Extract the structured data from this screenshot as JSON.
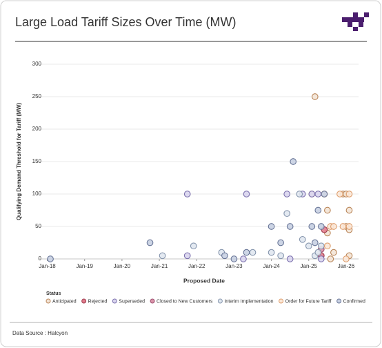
{
  "chart_data": {
    "type": "scatter",
    "title": "Large Load Tariff Sizes Over Time (MW)",
    "x_label": "Proposed Date",
    "y_label": "Qualifying Demand Threshold for Tariff (MW)",
    "legend_title": "Status",
    "source": "Data Source : Halcyon",
    "xlim": [
      "2017-10",
      "2026-05"
    ],
    "xticks": [
      {
        "value": "2018-01",
        "label": "Jan-18"
      },
      {
        "value": "2019-01",
        "label": "Jan-19"
      },
      {
        "value": "2020-01",
        "label": "Jan-20"
      },
      {
        "value": "2021-01",
        "label": "Jan-21"
      },
      {
        "value": "2022-01",
        "label": "Jan-22"
      },
      {
        "value": "2023-01",
        "label": "Jan-23"
      },
      {
        "value": "2024-01",
        "label": "Jan-24"
      },
      {
        "value": "2025-01",
        "label": "Jan-25"
      },
      {
        "value": "2026-01",
        "label": "Jan-26"
      }
    ],
    "ylim": [
      0,
      300
    ],
    "yticks": [
      0,
      50,
      100,
      150,
      200,
      250,
      300
    ],
    "grid": true,
    "series": [
      {
        "name": "Anticipated",
        "color": "#f3e4d6",
        "edgecolor": "#b98558",
        "x": [
          "2025-03",
          "2025-02",
          "2025-06",
          "2025-07",
          "2025-07",
          "2025-08",
          "2025-09",
          "2025-12",
          "2026-01",
          "2026-01",
          "2026-02",
          "2026-02",
          "2026-02"
        ],
        "values": [
          250,
          100,
          100,
          75,
          40,
          0,
          10,
          100,
          50,
          100,
          45,
          75,
          5
        ]
      },
      {
        "name": "Rejected",
        "color": "#e27d8d",
        "edgecolor": "#9c3a4c",
        "x": [
          "2025-06",
          "2025-05"
        ],
        "values": [
          45,
          5
        ]
      },
      {
        "name": "Superseded",
        "color": "#d9d5ee",
        "edgecolor": "#7b70ad",
        "x": [
          "2021-10",
          "2021-10",
          "2023-05",
          "2023-04",
          "2024-06",
          "2024-07",
          "2024-11",
          "2025-02",
          "2025-04",
          "2025-05"
        ],
        "values": [
          100,
          5,
          100,
          0,
          100,
          0,
          100,
          100,
          100,
          0
        ]
      },
      {
        "name": "Closed to New Customers",
        "color": "#d992a8",
        "edgecolor": "#9e5070",
        "x": [
          "2025-05"
        ],
        "values": [
          15
        ]
      },
      {
        "name": "Interim Implementation",
        "color": "#e0e7ef",
        "edgecolor": "#8595ad",
        "x": [
          "2021-02",
          "2021-12",
          "2022-09",
          "2023-07",
          "2024-01",
          "2024-04",
          "2024-06",
          "2024-10",
          "2024-11",
          "2025-01",
          "2025-03",
          "2025-04",
          "2025-05"
        ],
        "values": [
          5,
          20,
          10,
          10,
          10,
          5,
          70,
          100,
          30,
          20,
          5,
          10,
          20
        ]
      },
      {
        "name": "Order for Future Tariff",
        "color": "#fbe8d8",
        "edgecolor": "#de9d6c",
        "x": [
          "2025-06",
          "2025-07",
          "2025-08",
          "2025-09",
          "2025-11",
          "2025-12",
          "2026-01",
          "2026-02",
          "2026-02"
        ],
        "values": [
          100,
          20,
          50,
          50,
          100,
          50,
          0,
          50,
          100
        ]
      },
      {
        "name": "Confirmed",
        "color": "#c8d0e2",
        "edgecolor": "#687597",
        "x": [
          "2018-02",
          "2020-10",
          "2022-10",
          "2023-01",
          "2023-05",
          "2024-01",
          "2024-04",
          "2024-07",
          "2024-08",
          "2025-02",
          "2025-03",
          "2025-04",
          "2025-05",
          "2025-06"
        ],
        "values": [
          0,
          25,
          5,
          0,
          10,
          50,
          25,
          50,
          150,
          50,
          25,
          75,
          50,
          100
        ]
      }
    ]
  }
}
